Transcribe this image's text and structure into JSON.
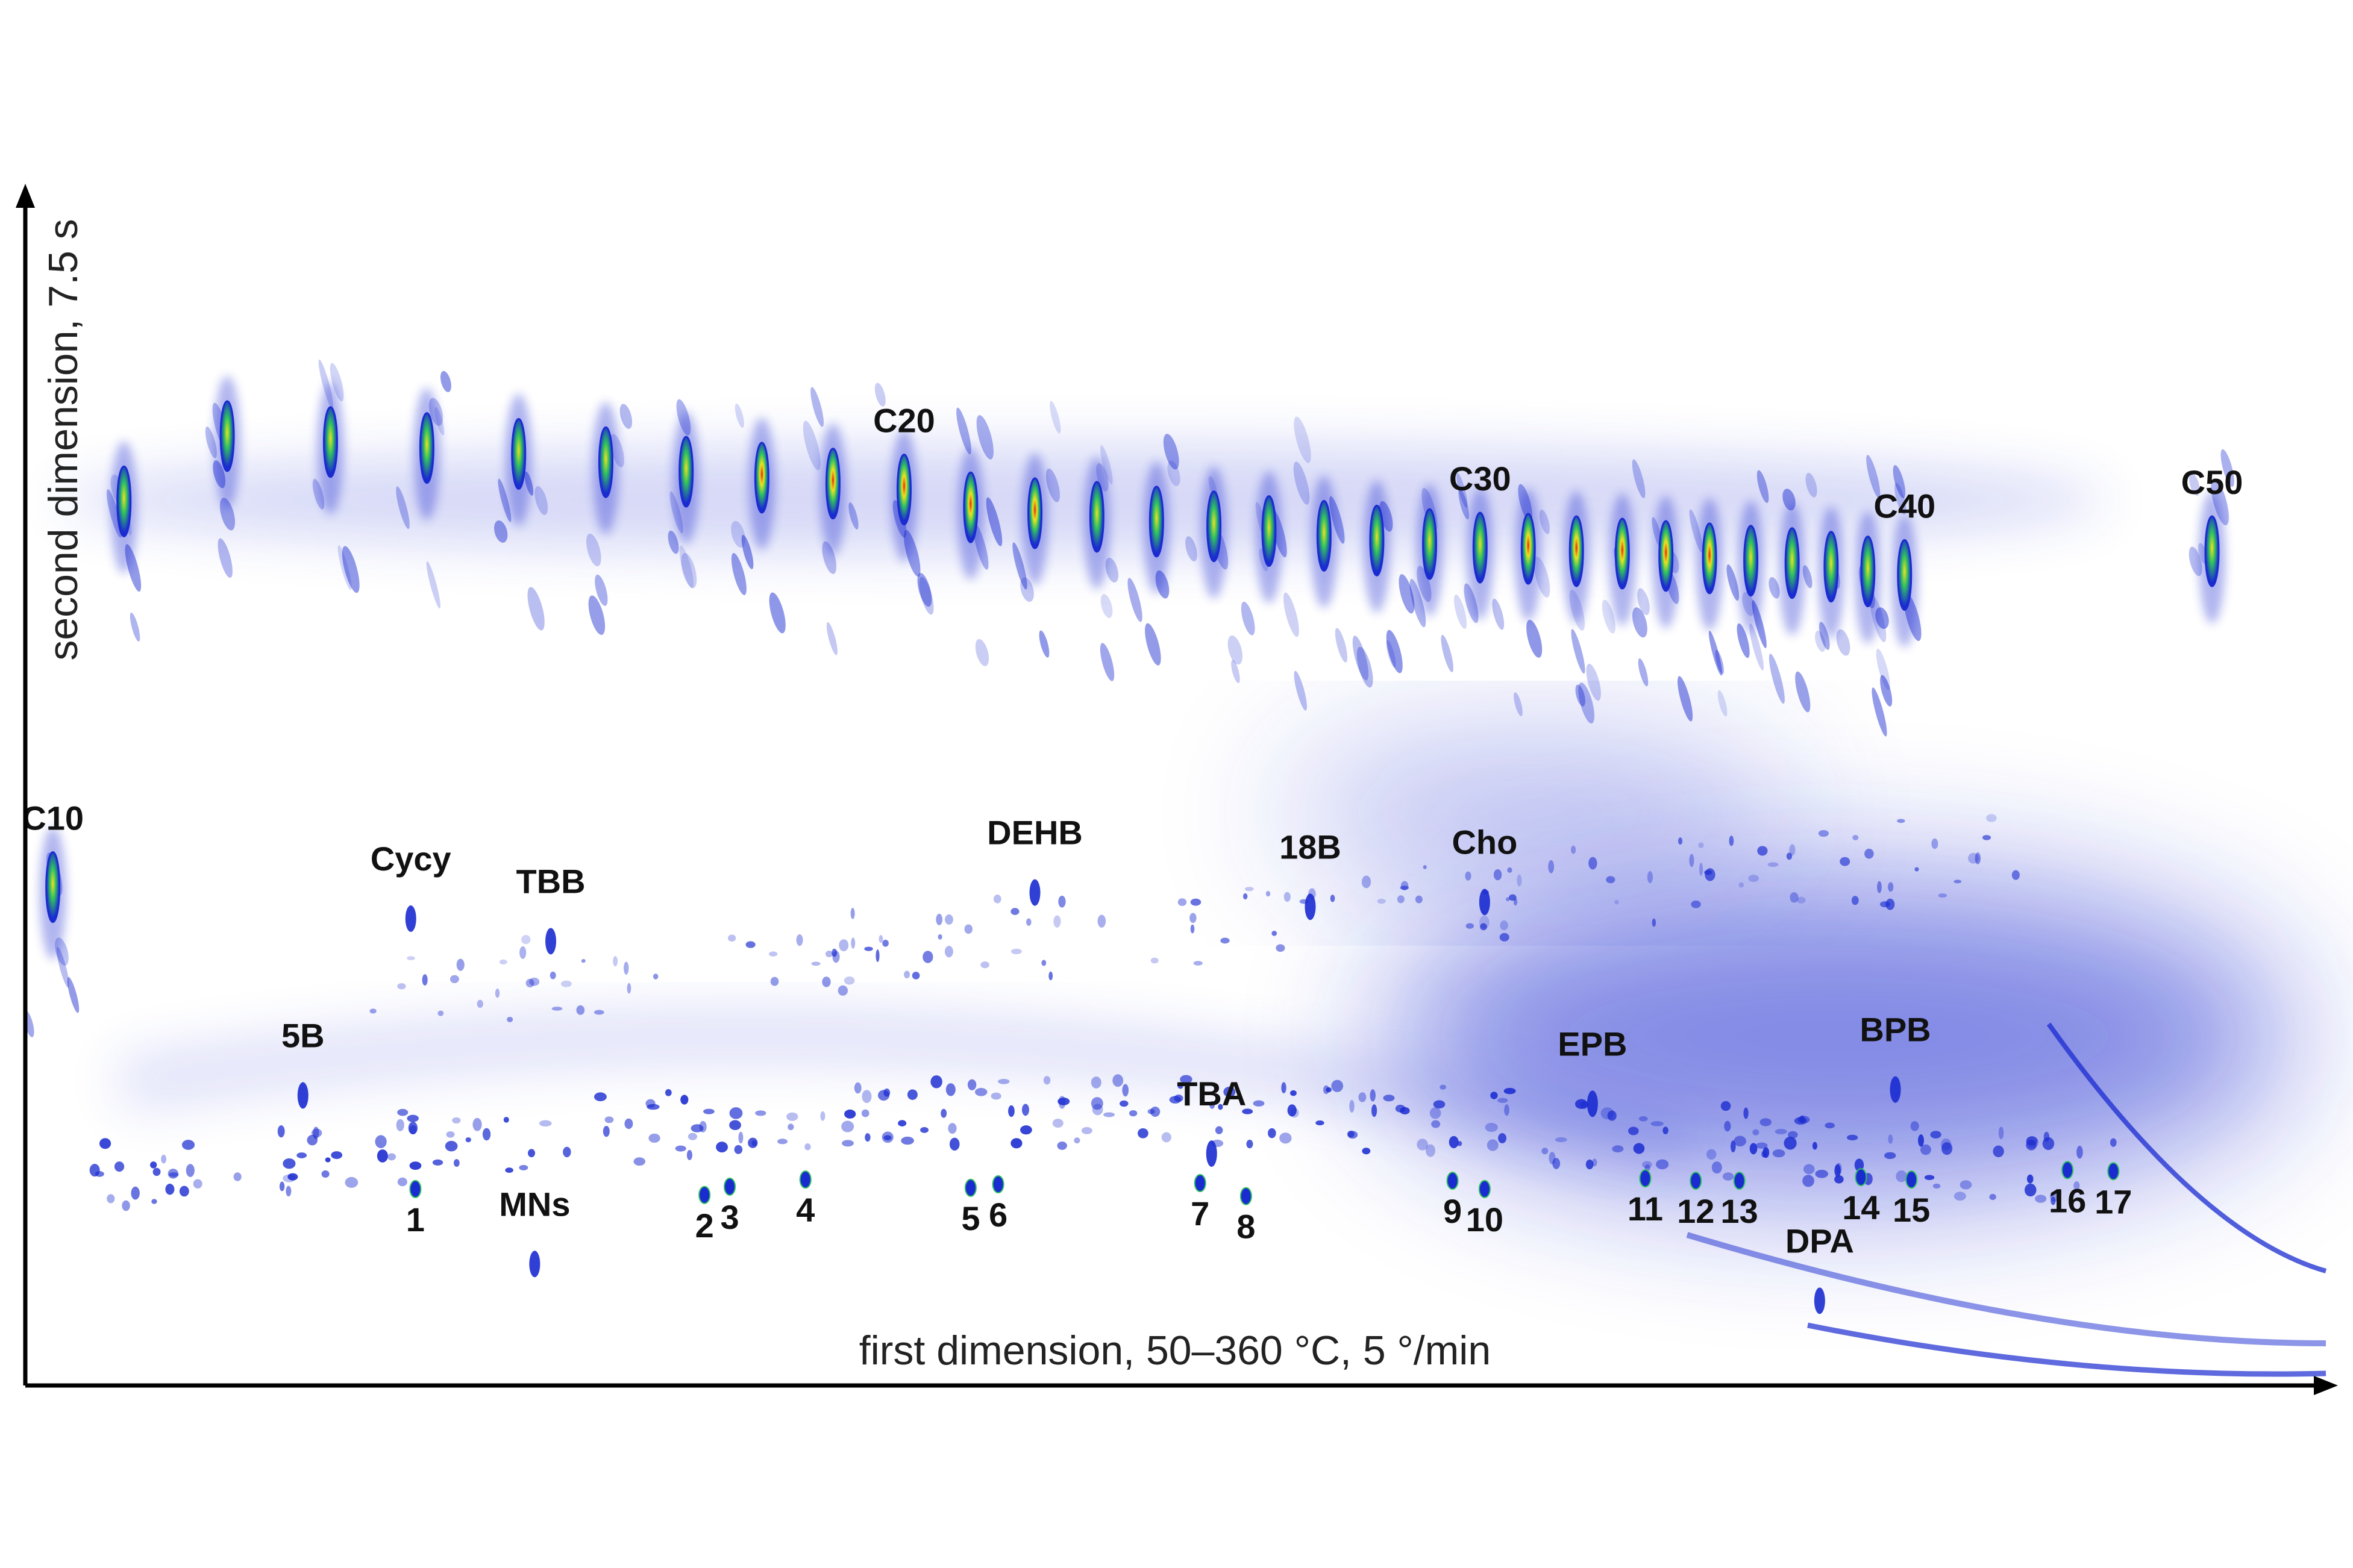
{
  "chart_data": {
    "type": "heatmap",
    "description_hidden": "",
    "xlabel": "first dimension, 50–360 °C, 5 °/min",
    "ylabel": "second dimension, 7.5 s",
    "xlim": [
      0,
      1000
    ],
    "ylim": [
      0,
      1000
    ],
    "grid": false,
    "colors": {
      "low": "#ffffff",
      "mid": "#1a2bd0",
      "high": "#e02a10",
      "peak_mid": "#2fc060",
      "peak_top": "#f0e020"
    },
    "alkane_peaks": [
      {
        "label": "C10",
        "x": 12,
        "y": 420
      },
      {
        "label": "",
        "x": 43,
        "y": 745
      },
      {
        "label": "",
        "x": 88,
        "y": 800
      },
      {
        "label": "",
        "x": 133,
        "y": 795
      },
      {
        "label": "",
        "x": 175,
        "y": 790
      },
      {
        "label": "",
        "x": 215,
        "y": 785
      },
      {
        "label": "",
        "x": 253,
        "y": 778
      },
      {
        "label": "",
        "x": 288,
        "y": 770
      },
      {
        "label": "",
        "x": 321,
        "y": 765
      },
      {
        "label": "",
        "x": 352,
        "y": 760
      },
      {
        "label": "C20",
        "x": 383,
        "y": 755
      },
      {
        "label": "",
        "x": 412,
        "y": 740
      },
      {
        "label": "",
        "x": 440,
        "y": 735
      },
      {
        "label": "",
        "x": 467,
        "y": 732
      },
      {
        "label": "",
        "x": 493,
        "y": 728
      },
      {
        "label": "",
        "x": 518,
        "y": 724
      },
      {
        "label": "",
        "x": 542,
        "y": 720
      },
      {
        "label": "",
        "x": 566,
        "y": 716
      },
      {
        "label": "",
        "x": 589,
        "y": 712
      },
      {
        "label": "",
        "x": 612,
        "y": 709
      },
      {
        "label": "C30",
        "x": 634,
        "y": 706
      },
      {
        "label": "",
        "x": 655,
        "y": 705
      },
      {
        "label": "",
        "x": 676,
        "y": 703
      },
      {
        "label": "",
        "x": 696,
        "y": 701
      },
      {
        "label": "",
        "x": 715,
        "y": 699
      },
      {
        "label": "",
        "x": 734,
        "y": 697
      },
      {
        "label": "",
        "x": 752,
        "y": 695
      },
      {
        "label": "",
        "x": 770,
        "y": 693
      },
      {
        "label": "",
        "x": 787,
        "y": 690
      },
      {
        "label": "",
        "x": 803,
        "y": 686
      },
      {
        "label": "C40",
        "x": 819,
        "y": 683
      },
      {
        "label": "C50",
        "x": 953,
        "y": 703
      }
    ],
    "annotations": [
      {
        "label": "Cycy",
        "x": 168,
        "y": 434
      },
      {
        "label": "TBB",
        "x": 229,
        "y": 415
      },
      {
        "label": "5B",
        "x": 121,
        "y": 285
      },
      {
        "label": "MNs",
        "x": 222,
        "y": 143
      },
      {
        "label": "DEHB",
        "x": 440,
        "y": 456
      },
      {
        "label": "18B",
        "x": 560,
        "y": 444
      },
      {
        "label": "Cho",
        "x": 636,
        "y": 448
      },
      {
        "label": "TBA",
        "x": 517,
        "y": 236
      },
      {
        "label": "EPB",
        "x": 683,
        "y": 278
      },
      {
        "label": "BPB",
        "x": 815,
        "y": 290
      },
      {
        "label": "DPA",
        "x": 782,
        "y": 112
      }
    ],
    "numbered_peaks": [
      {
        "label": "1",
        "x": 170,
        "y": 130
      },
      {
        "label": "2",
        "x": 296,
        "y": 125
      },
      {
        "label": "3",
        "x": 307,
        "y": 132
      },
      {
        "label": "4",
        "x": 340,
        "y": 138
      },
      {
        "label": "5",
        "x": 412,
        "y": 131
      },
      {
        "label": "6",
        "x": 424,
        "y": 134
      },
      {
        "label": "7",
        "x": 512,
        "y": 135
      },
      {
        "label": "8",
        "x": 532,
        "y": 124
      },
      {
        "label": "9",
        "x": 622,
        "y": 137
      },
      {
        "label": "10",
        "x": 636,
        "y": 130
      },
      {
        "label": "11",
        "x": 706,
        "y": 139
      },
      {
        "label": "12",
        "x": 728,
        "y": 137
      },
      {
        "label": "13",
        "x": 747,
        "y": 137
      },
      {
        "label": "14",
        "x": 800,
        "y": 140
      },
      {
        "label": "15",
        "x": 822,
        "y": 138
      },
      {
        "label": "16",
        "x": 890,
        "y": 146
      },
      {
        "label": "17",
        "x": 910,
        "y": 145
      }
    ]
  }
}
